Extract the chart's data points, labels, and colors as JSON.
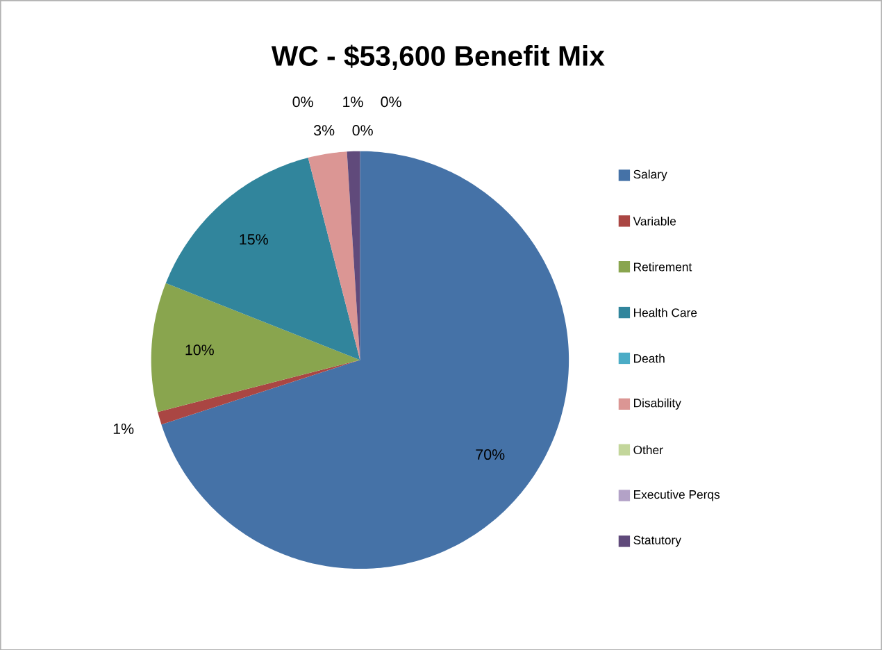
{
  "chart_data": {
    "type": "pie",
    "title": "WC - $53,600 Benefit Mix",
    "categories": [
      "Salary",
      "Variable",
      "Retirement",
      "Health Care",
      "Death",
      "Disability",
      "Other",
      "Executive Perqs",
      "Statutory"
    ],
    "values": [
      70,
      1,
      10,
      15,
      0,
      3,
      0,
      0,
      1
    ],
    "value_labels": [
      "70%",
      "1%",
      "10%",
      "15%",
      "0%",
      "3%",
      "0%",
      "0%",
      "1%"
    ],
    "colors": [
      "#4572a7",
      "#aa4643",
      "#89a54e",
      "#31859c",
      "#4bacc6",
      "#db9694",
      "#c3d69b",
      "#b3a2c7",
      "#604a7b"
    ],
    "legend": "right"
  }
}
